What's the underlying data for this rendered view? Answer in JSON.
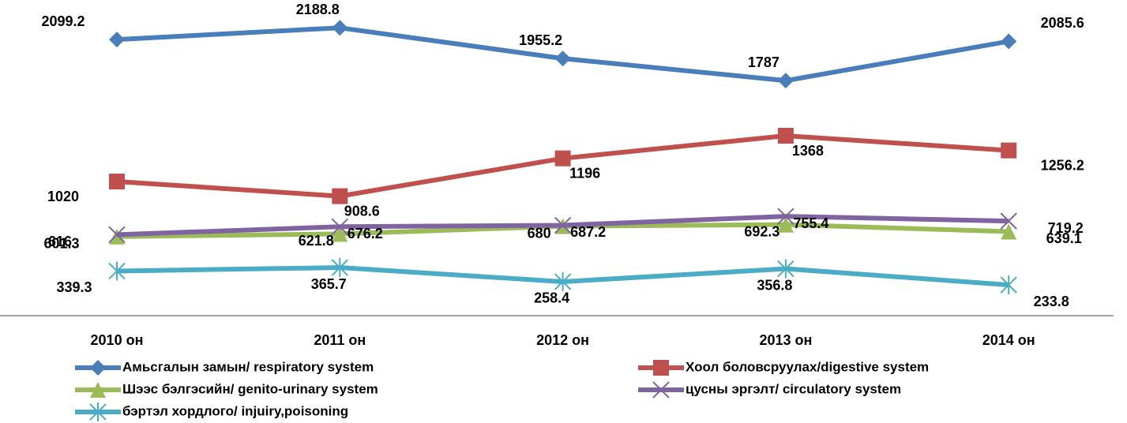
{
  "chart_data": {
    "type": "line",
    "categories": [
      "2010 он",
      "2011 он",
      "2012 он",
      "2013 он",
      "2014 он"
    ],
    "ylim": [
      0,
      2400
    ],
    "series": [
      {
        "name": "Амьсгалын замын/ respiratory system",
        "color": "#4a7ebb",
        "marker": "diamond",
        "values": [
          2099.2,
          2188.8,
          1955.2,
          1787,
          2085.6
        ]
      },
      {
        "name": "Хоол боловсруулах/digestive system",
        "color": "#c0504d",
        "marker": "square",
        "values": [
          1020,
          908.6,
          1196,
          1368,
          1256.2
        ]
      },
      {
        "name": "Шээс бэлгэсийн/ genito-urinary system",
        "color": "#9bbb59",
        "marker": "triangle",
        "values": [
          601.3,
          621.8,
          680,
          692.3,
          639.1
        ]
      },
      {
        "name": "цусны эргэлт/ circulatory system",
        "color": "#8064a2",
        "marker": "x",
        "values": [
          616,
          676.2,
          687.2,
          755.4,
          719.2
        ]
      },
      {
        "name": "бэртэл хордлого/ injuiry,poisoning",
        "color": "#4bacc6",
        "marker": "star",
        "values": [
          339.3,
          365.7,
          258.4,
          356.8,
          233.8
        ]
      }
    ]
  }
}
